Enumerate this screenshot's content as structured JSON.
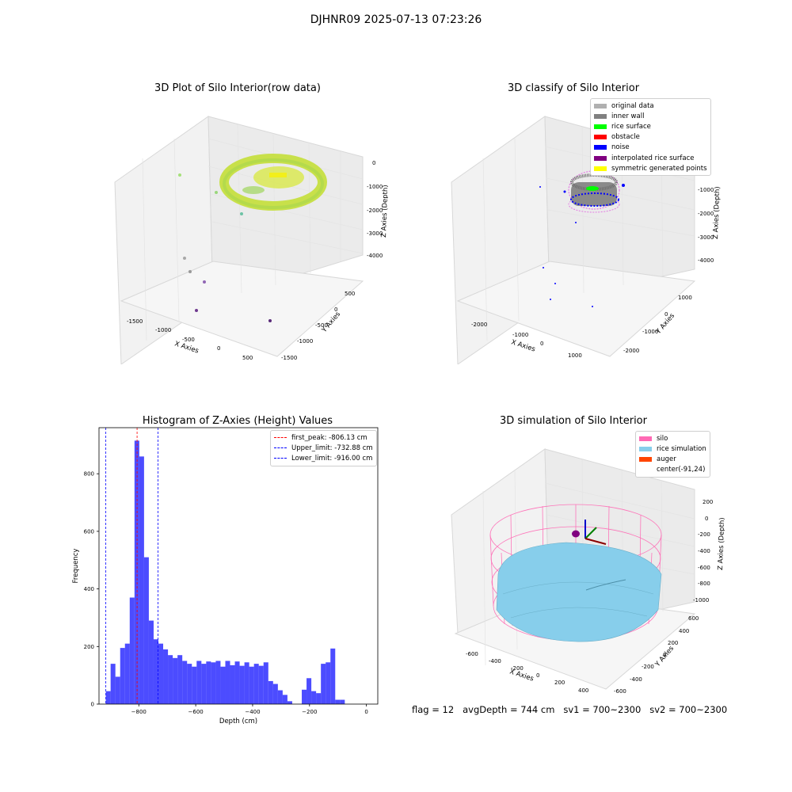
{
  "suptitle": "DJHNR09 2025-07-13 07:23:26",
  "footer": "flag = 12   avgDepth = 744 cm   sv1 = 700~2300   sv2 = 700~2300",
  "panels": {
    "raw": {
      "title": "3D Plot of Silo Interior(row data)",
      "xlabel": "X Axies",
      "ylabel": "Y Axies",
      "zlabel": "Z Axies (Depth)",
      "xticks": [
        "-1500",
        "-1000",
        "-500",
        "0",
        "500"
      ],
      "yticks": [
        "500",
        "0",
        "-500",
        "-1000",
        "-1500"
      ],
      "zticks": [
        "0",
        "-1000",
        "-2000",
        "-3000",
        "-4000"
      ]
    },
    "classify": {
      "title": "3D classify of Silo Interior",
      "xlabel": "X Axies",
      "ylabel": "Y Axies",
      "zlabel": "Z Axies (Depth)",
      "xticks": [
        "-2000",
        "-1000",
        "0",
        "1000"
      ],
      "yticks": [
        "1000",
        "0",
        "-1000",
        "-2000"
      ],
      "zticks": [
        "0",
        "-1000",
        "-2000",
        "-3000",
        "-4000"
      ],
      "legend": [
        {
          "label": "original data",
          "color": "#b0b0b0"
        },
        {
          "label": "inner wall",
          "color": "#808080"
        },
        {
          "label": "rice surface",
          "color": "#00ff00"
        },
        {
          "label": "obstacle",
          "color": "#ff0000"
        },
        {
          "label": "noise",
          "color": "#0000ff"
        },
        {
          "label": "interpolated rice surface",
          "color": "#800080"
        },
        {
          "label": "symmetric generated points",
          "color": "#ffff00"
        }
      ]
    },
    "simulation": {
      "title": "3D simulation of Silo Interior",
      "xlabel": "X Axies",
      "ylabel": "Y Axies",
      "zlabel": "Z Axies (Depth)",
      "xticks": [
        "-600",
        "-400",
        "-200",
        "0",
        "200",
        "400"
      ],
      "yticks": [
        "600",
        "400",
        "200",
        "0",
        "-200",
        "-400",
        "-600"
      ],
      "zticks": [
        "200",
        "0",
        "-200",
        "-400",
        "-600",
        "-800",
        "-1000"
      ],
      "legend": [
        {
          "label": "silo",
          "color": "#ff69b4"
        },
        {
          "label": "rice simulation",
          "color": "#87ceeb"
        },
        {
          "label": "auger",
          "color": "#ff4500"
        },
        {
          "label": "center(-91,24)",
          "color": "#ffffff"
        }
      ]
    }
  },
  "chart_data": {
    "type": "bar",
    "title": "Histogram of Z-Axies (Height) Values",
    "xlabel": "Depth (cm)",
    "ylabel": "Frequency",
    "xlim": [
      -940,
      40
    ],
    "ylim": [
      0,
      960
    ],
    "xticks": [
      -800,
      -600,
      -400,
      -200,
      0
    ],
    "yticks": [
      0,
      200,
      400,
      600,
      800
    ],
    "bar_color": "#0000ff",
    "bin_width": 16.8,
    "bin_start": -916,
    "values": [
      45,
      140,
      95,
      195,
      210,
      370,
      915,
      860,
      510,
      290,
      225,
      210,
      190,
      170,
      160,
      170,
      150,
      140,
      130,
      150,
      140,
      148,
      145,
      150,
      130,
      150,
      135,
      148,
      133,
      145,
      130,
      140,
      133,
      145,
      80,
      70,
      48,
      32,
      10,
      0,
      0,
      50,
      90,
      45,
      38,
      140,
      145,
      193,
      15,
      15
    ],
    "lines": [
      {
        "label": "first_peak: -806.13 cm",
        "x": -806.13,
        "color": "#ff0000"
      },
      {
        "label": "Upper_limit: -732.88 cm",
        "x": -732.88,
        "color": "#0000ff"
      },
      {
        "label": "Lower_limit: -916.00 cm",
        "x": -916.0,
        "color": "#0000ff"
      }
    ]
  }
}
